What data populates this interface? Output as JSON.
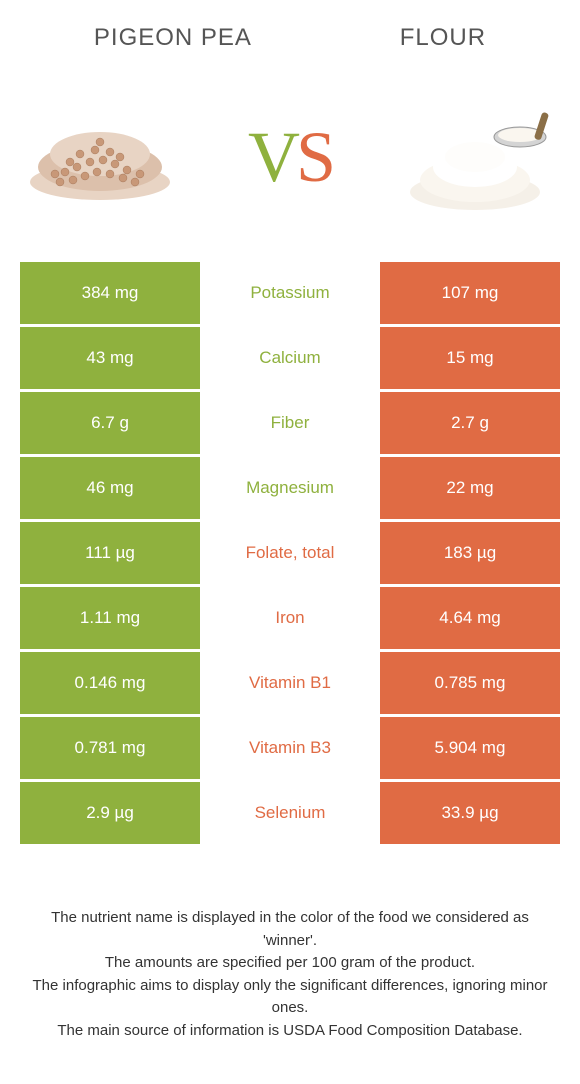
{
  "header": {
    "left": "Pigeon pea",
    "right": "Flour"
  },
  "vs": {
    "v": "V",
    "s": "S"
  },
  "colors": {
    "left": "#8fb13e",
    "right": "#e06b44",
    "text": "#333333",
    "header_text": "#555555",
    "background": "#ffffff"
  },
  "table": {
    "rows": [
      {
        "left": "384 mg",
        "label": "Potassium",
        "winner": "left",
        "right": "107 mg"
      },
      {
        "left": "43 mg",
        "label": "Calcium",
        "winner": "left",
        "right": "15 mg"
      },
      {
        "left": "6.7 g",
        "label": "Fiber",
        "winner": "left",
        "right": "2.7 g"
      },
      {
        "left": "46 mg",
        "label": "Magnesium",
        "winner": "left",
        "right": "22 mg"
      },
      {
        "left": "111 µg",
        "label": "Folate, total",
        "winner": "right",
        "right": "183 µg"
      },
      {
        "left": "1.11 mg",
        "label": "Iron",
        "winner": "right",
        "right": "4.64 mg"
      },
      {
        "left": "0.146 mg",
        "label": "Vitamin B1",
        "winner": "right",
        "right": "0.785 mg"
      },
      {
        "left": "0.781 mg",
        "label": "Vitamin B3",
        "winner": "right",
        "right": "5.904 mg"
      },
      {
        "left": "2.9 µg",
        "label": "Selenium",
        "winner": "right",
        "right": "33.9 µg"
      }
    ]
  },
  "footer": {
    "line1": "The nutrient name is displayed in the color of the food we considered as 'winner'.",
    "line2": "The amounts are specified per 100 gram of the product.",
    "line3": "The infographic aims to display only the significant differences, ignoring minor ones.",
    "line4": "The main source of information is USDA Food Composition Database."
  }
}
